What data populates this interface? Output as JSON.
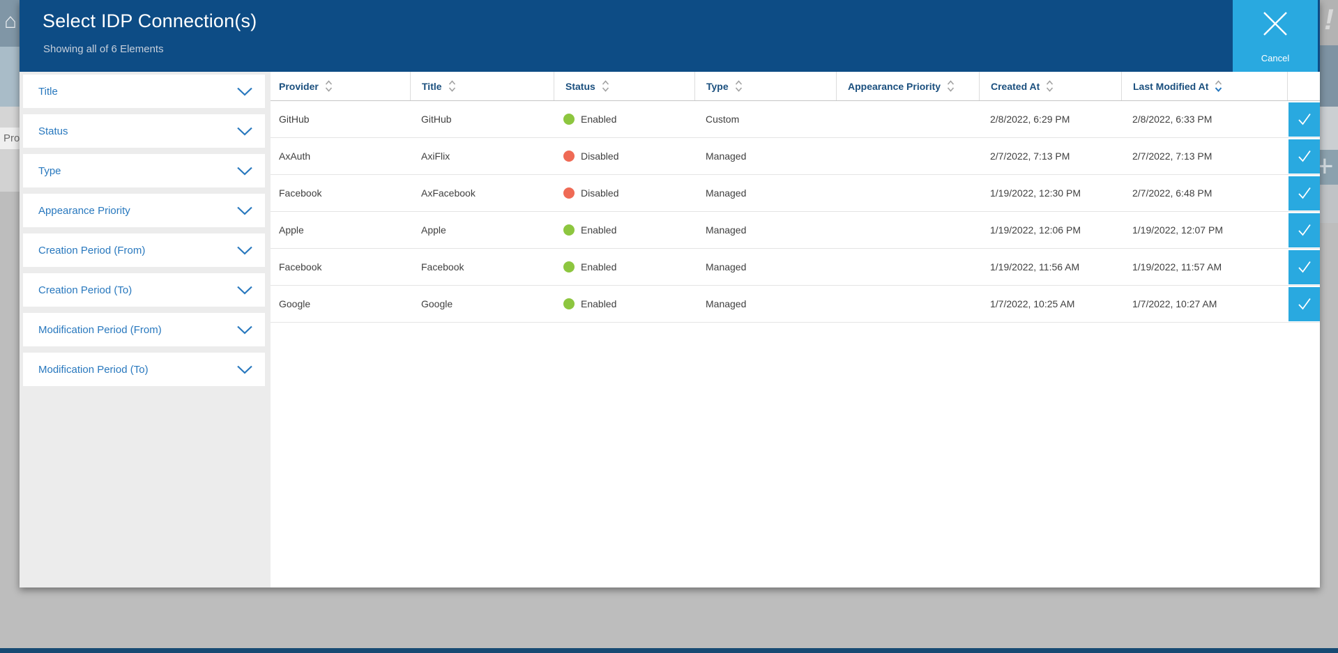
{
  "modal": {
    "title": "Select IDP Connection(s)",
    "subtitle": "Showing all of 6 Elements",
    "cancel_label": "Cancel"
  },
  "filters": [
    {
      "label": "Title"
    },
    {
      "label": "Status"
    },
    {
      "label": "Type"
    },
    {
      "label": "Appearance Priority"
    },
    {
      "label": "Creation Period (From)"
    },
    {
      "label": "Creation Period (To)"
    },
    {
      "label": "Modification Period (From)"
    },
    {
      "label": "Modification Period (To)"
    }
  ],
  "table": {
    "columns": [
      {
        "label": "Provider",
        "sort": "none"
      },
      {
        "label": "Title",
        "sort": "none"
      },
      {
        "label": "Status",
        "sort": "none"
      },
      {
        "label": "Type",
        "sort": "none"
      },
      {
        "label": "Appearance Priority",
        "sort": "none"
      },
      {
        "label": "Created At",
        "sort": "none"
      },
      {
        "label": "Last Modified At",
        "sort": "desc"
      }
    ],
    "rows": [
      {
        "provider": "GitHub",
        "title": "GitHub",
        "status": "Enabled",
        "type": "Custom",
        "appearance_priority": "",
        "created_at": "2/8/2022, 6:29 PM",
        "last_modified_at": "2/8/2022, 6:33 PM"
      },
      {
        "provider": "AxAuth",
        "title": "AxiFlix",
        "status": "Disabled",
        "type": "Managed",
        "appearance_priority": "",
        "created_at": "2/7/2022, 7:13 PM",
        "last_modified_at": "2/7/2022, 7:13 PM"
      },
      {
        "provider": "Facebook",
        "title": "AxFacebook",
        "status": "Disabled",
        "type": "Managed",
        "appearance_priority": "",
        "created_at": "1/19/2022, 12:30 PM",
        "last_modified_at": "2/7/2022, 6:48 PM"
      },
      {
        "provider": "Apple",
        "title": "Apple",
        "status": "Enabled",
        "type": "Managed",
        "appearance_priority": "",
        "created_at": "1/19/2022, 12:06 PM",
        "last_modified_at": "1/19/2022, 12:07 PM"
      },
      {
        "provider": "Facebook",
        "title": "Facebook",
        "status": "Enabled",
        "type": "Managed",
        "appearance_priority": "",
        "created_at": "1/19/2022, 11:56 AM",
        "last_modified_at": "1/19/2022, 11:57 AM"
      },
      {
        "provider": "Google",
        "title": "Google",
        "status": "Enabled",
        "type": "Managed",
        "appearance_priority": "",
        "created_at": "1/7/2022, 10:25 AM",
        "last_modified_at": "1/7/2022, 10:27 AM"
      }
    ]
  },
  "colors": {
    "status_dots": {
      "Enabled": "#8dc63f",
      "Disabled": "#ef6a55"
    },
    "header_navy": "#0d4c85",
    "accent_blue": "#29a9e0",
    "link_blue": "#2878be"
  },
  "background": {
    "partial_page_title": "Pro",
    "exclamation": "!",
    "plus": "+",
    "house_icon_glyph": "⌂"
  }
}
